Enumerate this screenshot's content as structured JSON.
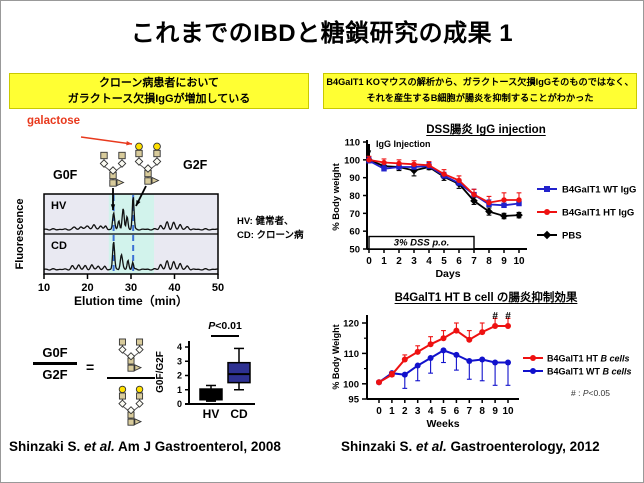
{
  "title": "これまでのIBDと糖鎖研究の成果 1",
  "banners": {
    "left": {
      "line1": "クローン病患者において",
      "line2": "ガラクトース欠損IgGが増加している",
      "bg": "#FFFF33"
    },
    "right": {
      "line1": "B4GalT1 KOマウスの解析から、ガラクトース欠損IgGそのものではなく、",
      "line2": "それを産生するB細胞が腸炎を抑制することがわかった",
      "bg": "#FFFF33"
    }
  },
  "left_figure": {
    "galactose_label": "galactose",
    "galactose_color": "#E8391D",
    "g0f_label": "G0F",
    "g2f_label": "G2F",
    "hv_note": "HV: 健常者、",
    "cd_note": "CD: クローン病"
  },
  "ratio_figure": {
    "numerator": "G0F",
    "denominator": "G2F",
    "equals": "="
  },
  "citations": {
    "left": {
      "pre": "Shinzaki S. ",
      "italic": "et al.",
      "post": " Am J Gastroenterol, 2008"
    },
    "right": {
      "pre": "Shinzaki S. ",
      "italic": "et al.",
      "post": " Gastroenterology, 2012"
    }
  },
  "chart_data": [
    {
      "id": "chromatogram",
      "type": "line",
      "ylabel": "Fluorescence",
      "xlabel": "Elution time（min）",
      "xlim": [
        10,
        50
      ],
      "xticks": [
        10,
        20,
        30,
        40,
        50
      ],
      "highlight_band": [
        24.9,
        35.3
      ],
      "dashed_lines": [
        26,
        30.5
      ],
      "colors": {
        "panel_bg": "#E9E9F2",
        "band": "#D2F3EC",
        "dash": "#3B6FD4",
        "trace": "#111111"
      },
      "panels": [
        {
          "label": "HV",
          "peaks": [
            [
              17,
              0.07,
              0.3
            ],
            [
              18.5,
              0.09,
              0.3
            ],
            [
              20,
              0.12,
              0.35
            ],
            [
              21.5,
              0.14,
              0.3
            ],
            [
              23,
              0.12,
              0.3
            ],
            [
              24.2,
              0.1,
              0.25
            ],
            [
              26,
              0.5,
              0.22
            ],
            [
              27.2,
              0.28,
              0.2
            ],
            [
              28.2,
              0.62,
              0.22
            ],
            [
              29.1,
              0.4,
              0.2
            ],
            [
              30.5,
              1.0,
              0.2
            ],
            [
              36.8,
              0.12,
              0.3
            ],
            [
              38.3,
              0.22,
              0.3
            ],
            [
              39.8,
              0.2,
              0.3
            ],
            [
              41.3,
              0.15,
              0.3
            ],
            [
              43,
              0.08,
              0.3
            ]
          ]
        },
        {
          "label": "CD",
          "peaks": [
            [
              16.5,
              0.1,
              0.3
            ],
            [
              18,
              0.14,
              0.3
            ],
            [
              19.5,
              0.1,
              0.3
            ],
            [
              21,
              0.13,
              0.3
            ],
            [
              22.5,
              0.1,
              0.3
            ],
            [
              24,
              0.08,
              0.25
            ],
            [
              26,
              0.85,
              0.22
            ],
            [
              27.8,
              0.45,
              0.25
            ],
            [
              29.3,
              0.28,
              0.2
            ],
            [
              30.4,
              0.22,
              0.18
            ],
            [
              36.8,
              0.15,
              0.3
            ],
            [
              38.3,
              0.25,
              0.3
            ],
            [
              39.8,
              0.22,
              0.3
            ],
            [
              41.3,
              0.18,
              0.3
            ],
            [
              43,
              0.1,
              0.3
            ]
          ]
        }
      ]
    },
    {
      "id": "g0f-g2f-boxplot",
      "type": "box",
      "ylabel": "G0F/G2F",
      "ylim": [
        0,
        4
      ],
      "yticks": [
        0,
        1,
        2,
        3,
        4
      ],
      "categories": [
        "HV",
        "CD"
      ],
      "p_label": {
        "italic": "P",
        "rest": "<0.01"
      },
      "boxes": [
        {
          "label": "HV",
          "lo": 0.2,
          "q1": 0.3,
          "median": 0.6,
          "q3": 1.05,
          "hi": 1.3,
          "color": "#000000"
        },
        {
          "label": "CD",
          "lo": 1.0,
          "q1": 1.5,
          "median": 2.1,
          "q3": 2.9,
          "hi": 3.9,
          "color": "#2E3192"
        }
      ]
    },
    {
      "id": "dss-igg",
      "type": "line",
      "title": "DSS腸炎 IgG injection",
      "xlabel": "Days",
      "ylabel": "% Body weight",
      "x": [
        0,
        1,
        2,
        3,
        4,
        5,
        6,
        7,
        8,
        9,
        10
      ],
      "ylim": [
        50,
        110
      ],
      "yticks": [
        50,
        60,
        70,
        80,
        90,
        100,
        110
      ],
      "legend_order": [
        1,
        2,
        0
      ],
      "series": [
        {
          "label": "PBS",
          "color": "#000000",
          "marker": "diamond",
          "err_dir": "both",
          "values": [
            100,
            96.5,
            96,
            94,
            96,
            90.5,
            86.5,
            77,
            71,
            68.5,
            69
          ],
          "err": [
            1.5,
            1.5,
            2,
            3,
            1.5,
            2,
            2.5,
            2,
            2,
            1.5,
            1.5
          ]
        },
        {
          "label": "B4GalT1 WT IgG",
          "color": "#2222CC",
          "marker": "square",
          "err_dir": "up",
          "values": [
            99.5,
            95,
            96,
            96,
            96.5,
            91,
            87,
            80.5,
            75,
            74.5,
            75.5
          ],
          "err": [
            2,
            2,
            2,
            2,
            2,
            2,
            2,
            3,
            2.5,
            2.5,
            2
          ]
        },
        {
          "label": "B4GalT1 HT IgG",
          "color": "#EE1111",
          "marker": "circle",
          "err_dir": "up",
          "values": [
            100,
            98.5,
            98,
            97.5,
            97,
            92,
            88.5,
            80.5,
            76,
            77.5,
            77.5
          ],
          "err": [
            2,
            2,
            2,
            2,
            2,
            2.5,
            2.5,
            3,
            3.5,
            4,
            4
          ]
        }
      ],
      "annotations": {
        "injection_label": "IgG Injection",
        "dss_box_label": "3% DSS p.o.",
        "dss_span": [
          0,
          7
        ]
      }
    },
    {
      "id": "bcell",
      "type": "line",
      "title": "B4GalT1 HT B cell の腸炎抑制効果",
      "xlabel": "Weeks",
      "ylabel": "% Body Weight",
      "x": [
        0,
        1,
        2,
        3,
        4,
        5,
        6,
        7,
        8,
        9,
        10
      ],
      "ylim": [
        95,
        120
      ],
      "yticks": [
        95,
        100,
        110,
        120
      ],
      "yticks_minor": [
        105,
        115
      ],
      "series": [
        {
          "label": "B4GalT1 HT",
          "label_italic": "B cells",
          "color": "#EE1111",
          "marker": "circle",
          "err_dir": "up",
          "values": [
            100.5,
            103,
            108,
            110.5,
            113,
            115,
            117.5,
            114.5,
            117,
            119,
            119
          ],
          "err": [
            0.5,
            1,
            1.5,
            2,
            2.5,
            2.5,
            2.5,
            3,
            3,
            2.5,
            2.5
          ]
        },
        {
          "label": "B4GalT1 WT",
          "label_italic": "B cells",
          "color": "#1111CC",
          "marker": "circle",
          "err_dir": "down",
          "values": [
            100.5,
            103.5,
            103,
            106,
            108.5,
            111,
            109.5,
            107.5,
            108,
            107,
            107
          ],
          "err": [
            0.5,
            1,
            4.5,
            5,
            5,
            4,
            5,
            6,
            7,
            7.5,
            7.5
          ]
        }
      ],
      "sig": {
        "symbol": "#",
        "weeks": [
          9,
          10
        ],
        "note": {
          "pre": "# : ",
          "italic": "P",
          "post": "<0.05"
        }
      }
    }
  ]
}
